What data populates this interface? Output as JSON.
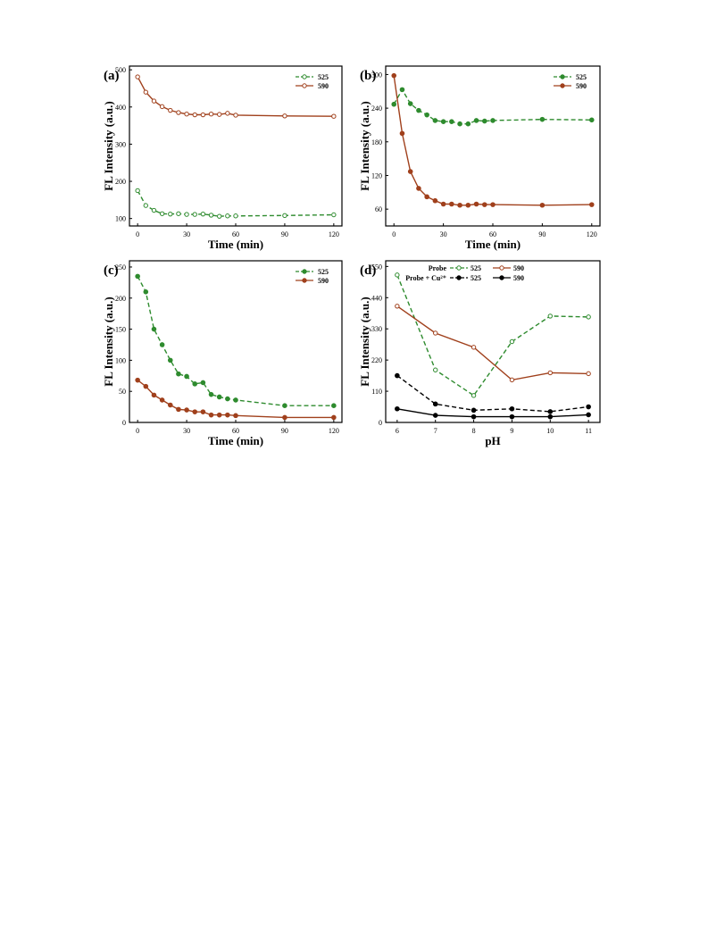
{
  "colors": {
    "green": "#2e8b2e",
    "brown": "#a0401c",
    "black": "#000000"
  },
  "chart_data": [
    {
      "panel": "(a)",
      "type": "line",
      "xlabel": "Time (min)",
      "ylabel": "FL Intensity (a.u.)",
      "xlim": [
        -5,
        125
      ],
      "ylim": [
        80,
        510
      ],
      "xticks": [
        0,
        30,
        60,
        90,
        120
      ],
      "yticks": [
        100,
        200,
        300,
        400,
        500
      ],
      "legend_position": "top-right",
      "series": [
        {
          "name": "525",
          "color": "#2e8b2e",
          "dashed": true,
          "marker": "open",
          "x": [
            0,
            5,
            10,
            15,
            20,
            25,
            30,
            35,
            40,
            45,
            50,
            55,
            60,
            90,
            120
          ],
          "y": [
            175,
            135,
            122,
            113,
            112,
            113,
            111,
            111,
            112,
            109,
            106,
            107,
            107,
            108,
            110
          ]
        },
        {
          "name": "590",
          "color": "#a0401c",
          "dashed": false,
          "marker": "open",
          "x": [
            0,
            5,
            10,
            15,
            20,
            25,
            30,
            35,
            40,
            45,
            50,
            55,
            60,
            90,
            120
          ],
          "y": [
            481,
            440,
            416,
            401,
            391,
            385,
            381,
            379,
            379,
            381,
            380,
            383,
            378,
            376,
            375
          ]
        }
      ]
    },
    {
      "panel": "(b)",
      "type": "line",
      "xlabel": "Time (min)",
      "ylabel": "FL Intensity (a.u.)",
      "xlim": [
        -5,
        125
      ],
      "ylim": [
        30,
        315
      ],
      "xticks": [
        0,
        30,
        60,
        90,
        120
      ],
      "yticks": [
        60,
        120,
        180,
        240,
        300
      ],
      "legend_position": "top-right",
      "series": [
        {
          "name": "525",
          "color": "#2e8b2e",
          "dashed": true,
          "marker": "filled",
          "x": [
            0,
            5,
            10,
            15,
            20,
            25,
            30,
            35,
            40,
            45,
            50,
            55,
            60,
            90,
            120
          ],
          "y": [
            247,
            273,
            248,
            236,
            228,
            218,
            216,
            216,
            212,
            212,
            218,
            217,
            218,
            220,
            219
          ]
        },
        {
          "name": "590",
          "color": "#a0401c",
          "dashed": false,
          "marker": "filled",
          "x": [
            0,
            5,
            10,
            15,
            20,
            25,
            30,
            35,
            40,
            45,
            50,
            55,
            60,
            90,
            120
          ],
          "y": [
            298,
            195,
            127,
            97,
            82,
            75,
            69,
            69,
            67,
            67,
            69,
            68,
            68,
            67,
            68
          ]
        }
      ]
    },
    {
      "panel": "(c)",
      "type": "line",
      "xlabel": "Time (min)",
      "ylabel": "FL Intensity (a.u.)",
      "xlim": [
        -5,
        125
      ],
      "ylim": [
        0,
        260
      ],
      "xticks": [
        0,
        30,
        60,
        90,
        120
      ],
      "yticks": [
        0,
        50,
        100,
        150,
        200,
        250
      ],
      "legend_position": "top-right",
      "series": [
        {
          "name": "525",
          "color": "#2e8b2e",
          "dashed": true,
          "marker": "filled",
          "x": [
            0,
            5,
            10,
            15,
            20,
            25,
            30,
            35,
            40,
            45,
            50,
            55,
            60,
            90,
            120
          ],
          "y": [
            235,
            210,
            150,
            125,
            100,
            78,
            74,
            62,
            64,
            45,
            41,
            38,
            36,
            27,
            27
          ]
        },
        {
          "name": "590",
          "color": "#a0401c",
          "dashed": false,
          "marker": "filled",
          "x": [
            0,
            5,
            10,
            15,
            20,
            25,
            30,
            35,
            40,
            45,
            50,
            55,
            60,
            90,
            120
          ],
          "y": [
            68,
            58,
            44,
            36,
            28,
            21,
            20,
            17,
            17,
            12,
            12,
            12,
            11,
            8,
            8
          ]
        }
      ]
    },
    {
      "panel": "(d)",
      "type": "line",
      "xlabel": "pH",
      "ylabel": "FL Intensity (a.u.)",
      "xlim": [
        5.7,
        11.3
      ],
      "ylim": [
        0,
        570
      ],
      "xticks": [
        6,
        7,
        8,
        9,
        10,
        11
      ],
      "yticks": [
        0,
        110,
        220,
        330,
        440,
        550
      ],
      "legend_position": "top",
      "legend_rows": [
        "Probe",
        "Probe + Cu²⁺"
      ],
      "series": [
        {
          "name": "525",
          "group": "Probe",
          "color": "#2e8b2e",
          "dashed": true,
          "marker": "open",
          "x": [
            6,
            7,
            8,
            9,
            10,
            11
          ],
          "y": [
            520,
            185,
            95,
            285,
            375,
            372
          ]
        },
        {
          "name": "590",
          "group": "Probe",
          "color": "#a0401c",
          "dashed": false,
          "marker": "open",
          "x": [
            6,
            7,
            8,
            9,
            10,
            11
          ],
          "y": [
            410,
            315,
            265,
            150,
            175,
            172
          ]
        },
        {
          "name": "525",
          "group": "Probe + Cu²⁺",
          "color": "#000000",
          "dashed": true,
          "marker": "filled",
          "x": [
            6,
            7,
            8,
            9,
            10,
            11
          ],
          "y": [
            165,
            65,
            43,
            48,
            38,
            55
          ]
        },
        {
          "name": "590",
          "group": "Probe + Cu²⁺",
          "color": "#000000",
          "dashed": false,
          "marker": "filled",
          "x": [
            6,
            7,
            8,
            9,
            10,
            11
          ],
          "y": [
            48,
            25,
            20,
            20,
            20,
            27
          ]
        }
      ]
    }
  ]
}
